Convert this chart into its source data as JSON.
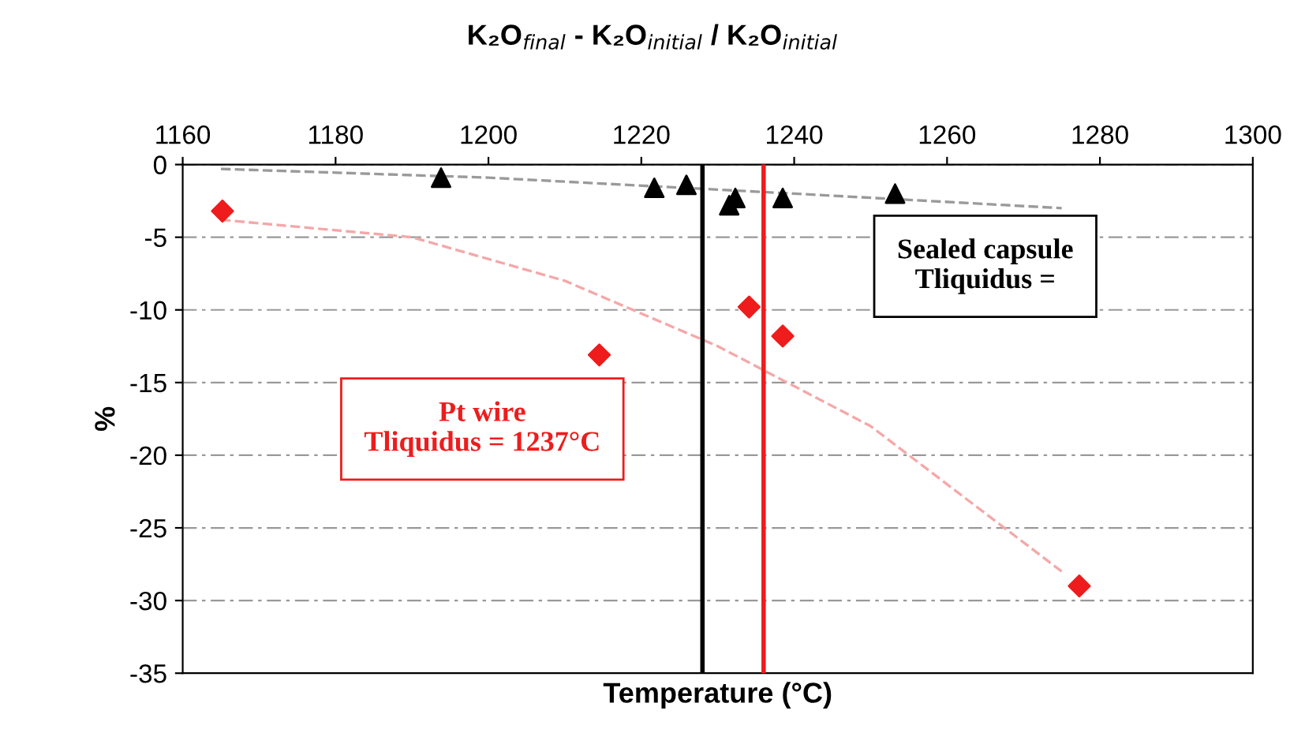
{
  "chart_data": {
    "type": "scatter",
    "title": "K₂O$_{final}$ - K₂O$_{initial}$ / K₂O$_{initial}$",
    "xlabel": "Temperature (°C)",
    "ylabel": "%",
    "xlim": [
      1160,
      1300
    ],
    "xticks": [
      1160,
      1180,
      1200,
      1220,
      1240,
      1260,
      1280,
      1300
    ],
    "ylim": [
      -35,
      0
    ],
    "yticks": [
      -35,
      -30,
      -25,
      -20,
      -15,
      -10,
      -5,
      0
    ],
    "grid": "y",
    "series": [
      {
        "type": "line",
        "color": "#9a9a9a",
        "line_style": "dashed",
        "marker": "none",
        "x": [
          1165,
          1200,
          1240,
          1275
        ],
        "values": [
          -0.3,
          -0.9,
          -2.0,
          -3.0
        ]
      },
      {
        "type": "line",
        "color": "#f4a8a8",
        "line_style": "dashed",
        "marker": "none",
        "x": [
          1165,
          1190,
          1210,
          1230,
          1250,
          1275
        ],
        "values": [
          -3.8,
          -5,
          -8,
          -12.5,
          -18,
          -28
        ]
      },
      {
        "color": "#000000",
        "marker": "triangle",
        "x": [
          1193.8,
          1221.7,
          1225.9,
          1231.5,
          1232.3,
          1238.5,
          1253.2
        ],
        "values": [
          -0.9,
          -1.6,
          -1.4,
          -2.8,
          -2.3,
          -2.3,
          -2.0
        ]
      },
      {
        "color": "#ee1c1c",
        "marker": "diamond",
        "x": [
          1165.2,
          1214.5,
          1234.1,
          1238.5,
          1277.3
        ],
        "values": [
          -3.2,
          -13.1,
          -9.8,
          -11.8,
          -29
        ]
      }
    ],
    "ref_lines": [
      {
        "axis": "x",
        "value": 1228,
        "color": "#000000"
      },
      {
        "axis": "x",
        "value": 1236,
        "color": "#ee1c1c"
      }
    ],
    "annotations": [
      "Sealed capsule\nTliquidus =",
      "Pt wire\nTliquidus = 1237°C"
    ]
  }
}
